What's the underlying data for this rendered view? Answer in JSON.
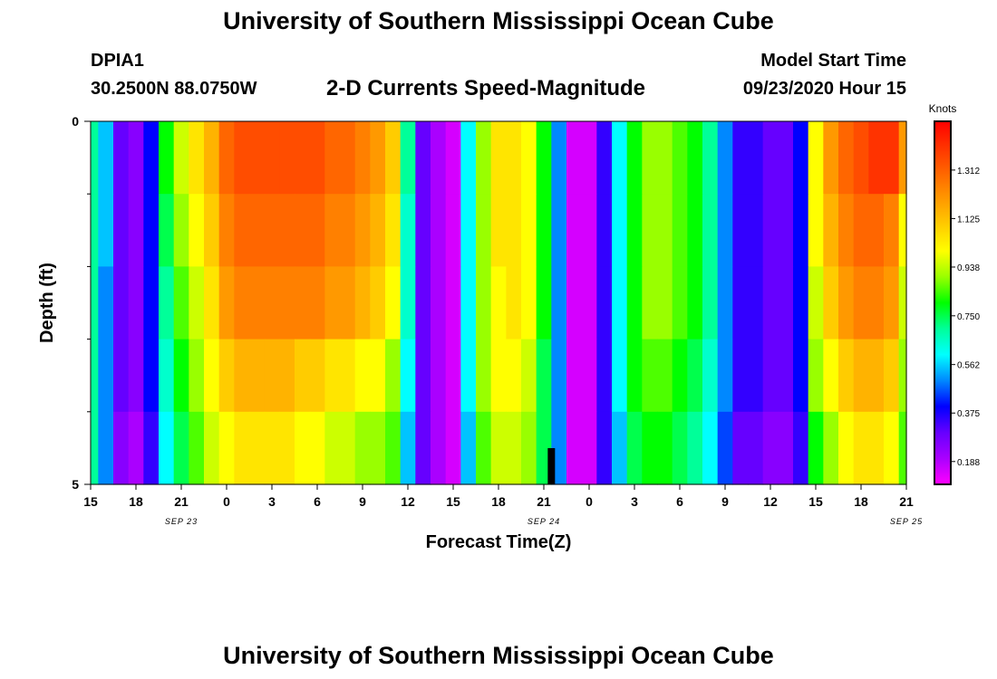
{
  "header": {
    "title": "University of Southern Mississippi Ocean Cube",
    "station_id": "DPIA1",
    "station_coords": "30.2500N 88.0750W",
    "chart_title": "2-D Currents Speed-Magnitude",
    "start_label": "Model Start Time",
    "start_value": "09/23/2020 Hour 15"
  },
  "footer": {
    "title": "University of Southern Mississippi Ocean Cube"
  },
  "chart_data": {
    "type": "heatmap",
    "title": "2-D Currents Speed-Magnitude",
    "xlabel": "Forecast Time(Z)",
    "ylabel": "Depth (ft)",
    "x_tick_labels": [
      "15",
      "18",
      "21",
      "0",
      "3",
      "6",
      "9",
      "12",
      "15",
      "18",
      "21",
      "0",
      "3",
      "6",
      "9",
      "12",
      "15",
      "18",
      "21"
    ],
    "date_labels": [
      {
        "text": "SEP 23",
        "hour_offset": 6
      },
      {
        "text": "SEP 24",
        "hour_offset": 30
      },
      {
        "text": "SEP 25",
        "hour_offset": 54
      }
    ],
    "hours_range": [
      0,
      54
    ],
    "depth_range": [
      0,
      5
    ],
    "y_tick_labels": [
      "0",
      "5"
    ],
    "y_minor_ticks": [
      1,
      2,
      3,
      4
    ],
    "colorbar": {
      "unit": "Knots",
      "range": [
        0.1,
        1.5
      ],
      "ticks": [
        "1.312",
        "1.125",
        "0.938",
        "0.750",
        "0.562",
        "0.375",
        "0.188"
      ],
      "colors": [
        "#ff00ff",
        "#aa00ff",
        "#6600ff",
        "#0000ff",
        "#0088ff",
        "#00ffff",
        "#00ff99",
        "#00ff00",
        "#99ff00",
        "#ffff00",
        "#ffcc00",
        "#ff9900",
        "#ff6600",
        "#ff3300",
        "#ff0000"
      ]
    },
    "current_time_marker_hour": 30.5,
    "depth_levels": [
      0.5,
      1.5,
      2.5,
      3.5,
      4.5
    ],
    "hours": [
      0,
      1,
      2,
      3,
      4,
      5,
      6,
      7,
      8,
      9,
      10,
      11,
      12,
      13,
      14,
      15,
      16,
      17,
      18,
      19,
      20,
      21,
      22,
      23,
      24,
      25,
      26,
      27,
      28,
      29,
      30,
      31,
      32,
      33,
      34,
      35,
      36,
      37,
      38,
      39,
      40,
      41,
      42,
      43,
      44,
      45,
      46,
      47,
      48,
      49,
      50,
      51,
      52,
      53,
      54
    ],
    "speeds_knots": [
      [
        0.7,
        0.55,
        0.3,
        0.25,
        0.4,
        0.8,
        0.95,
        1.05,
        1.15,
        1.3,
        1.35,
        1.35,
        1.35,
        1.35,
        1.35,
        1.35,
        1.3,
        1.3,
        1.25,
        1.2,
        1.1,
        0.7,
        0.3,
        0.2,
        0.15,
        0.6,
        0.9,
        1.05,
        1.05,
        1.0,
        0.8,
        0.5,
        0.15,
        0.15,
        0.35,
        0.6,
        0.8,
        0.9,
        0.9,
        0.85,
        0.8,
        0.7,
        0.5,
        0.35,
        0.35,
        0.3,
        0.3,
        0.4,
        1.0,
        1.2,
        1.3,
        1.35,
        1.4,
        1.4,
        1.2
      ],
      [
        0.7,
        0.55,
        0.3,
        0.25,
        0.4,
        0.75,
        0.9,
        1.0,
        1.1,
        1.25,
        1.3,
        1.3,
        1.3,
        1.3,
        1.3,
        1.3,
        1.25,
        1.25,
        1.2,
        1.15,
        1.05,
        0.65,
        0.3,
        0.2,
        0.15,
        0.6,
        0.9,
        1.05,
        1.05,
        1.0,
        0.8,
        0.5,
        0.15,
        0.15,
        0.35,
        0.6,
        0.8,
        0.9,
        0.9,
        0.85,
        0.8,
        0.7,
        0.5,
        0.35,
        0.35,
        0.3,
        0.3,
        0.4,
        1.0,
        1.15,
        1.25,
        1.3,
        1.3,
        1.25,
        1.0
      ],
      [
        0.7,
        0.5,
        0.3,
        0.25,
        0.4,
        0.7,
        0.85,
        0.95,
        1.05,
        1.2,
        1.25,
        1.25,
        1.25,
        1.25,
        1.25,
        1.25,
        1.2,
        1.2,
        1.15,
        1.1,
        1.0,
        0.65,
        0.3,
        0.2,
        0.15,
        0.6,
        0.9,
        1.0,
        1.05,
        1.0,
        0.8,
        0.5,
        0.15,
        0.15,
        0.35,
        0.6,
        0.8,
        0.9,
        0.9,
        0.85,
        0.8,
        0.7,
        0.5,
        0.35,
        0.35,
        0.3,
        0.3,
        0.4,
        0.95,
        1.1,
        1.2,
        1.25,
        1.25,
        1.2,
        0.95
      ],
      [
        0.7,
        0.5,
        0.3,
        0.25,
        0.4,
        0.65,
        0.8,
        0.9,
        1.0,
        1.1,
        1.15,
        1.15,
        1.15,
        1.15,
        1.1,
        1.1,
        1.05,
        1.05,
        1.0,
        1.0,
        0.9,
        0.6,
        0.3,
        0.2,
        0.15,
        0.6,
        0.9,
        1.0,
        1.0,
        0.95,
        0.75,
        0.5,
        0.15,
        0.15,
        0.35,
        0.6,
        0.8,
        0.85,
        0.85,
        0.8,
        0.75,
        0.65,
        0.5,
        0.35,
        0.35,
        0.3,
        0.3,
        0.4,
        0.9,
        1.0,
        1.1,
        1.15,
        1.15,
        1.1,
        0.9
      ],
      [
        0.7,
        0.5,
        0.25,
        0.2,
        0.35,
        0.6,
        0.75,
        0.85,
        0.95,
        1.0,
        1.05,
        1.05,
        1.05,
        1.05,
        1.0,
        1.0,
        0.95,
        0.95,
        0.9,
        0.9,
        0.85,
        0.55,
        0.3,
        0.2,
        0.15,
        0.55,
        0.85,
        0.95,
        0.95,
        0.9,
        0.75,
        0.5,
        0.15,
        0.15,
        0.35,
        0.55,
        0.75,
        0.8,
        0.8,
        0.75,
        0.7,
        0.6,
        0.45,
        0.3,
        0.3,
        0.25,
        0.25,
        0.35,
        0.8,
        0.9,
        1.0,
        1.05,
        1.05,
        1.0,
        0.85
      ]
    ]
  }
}
